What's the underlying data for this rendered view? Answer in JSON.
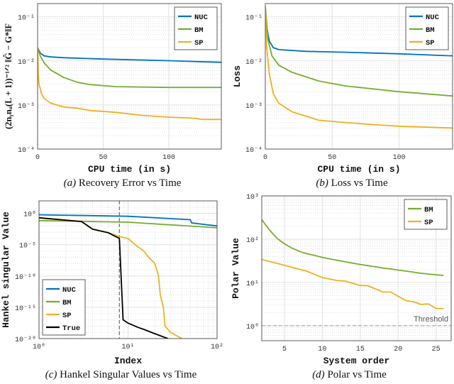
{
  "colors": {
    "NUC": "#0072BD",
    "BM": "#77AC30",
    "SP": "#EDB120",
    "True": "#000000"
  },
  "chart_data": [
    {
      "id": "a",
      "type": "line",
      "caption_label": "(a)",
      "caption_text": " Recovery Error vs Time",
      "xlabel": "CPU time (in s)",
      "ylabel": "(2nᵧnᵤ(L + 1))⁻¹ᐟ² ‖Ĝ − G*‖F",
      "xscale": "linear",
      "yscale": "log",
      "xlim": [
        0,
        140
      ],
      "ylim": [
        0.0001,
        0.2
      ],
      "xticks": [
        0,
        50,
        100
      ],
      "xtick_labels": [
        "0",
        "50",
        "100"
      ],
      "yticks": [
        0.0001,
        0.001,
        0.01,
        0.1
      ],
      "ytick_labels": [
        "10⁻⁴",
        "10⁻³",
        "10⁻²",
        "10⁻¹"
      ],
      "grid": true,
      "legend_position": "top-right",
      "series": [
        {
          "name": "NUC",
          "points": [
            [
              0,
              0.02
            ],
            [
              2,
              0.015
            ],
            [
              5,
              0.013
            ],
            [
              10,
              0.0123
            ],
            [
              20,
              0.0118
            ],
            [
              50,
              0.011
            ],
            [
              100,
              0.0101
            ],
            [
              140,
              0.0093
            ]
          ]
        },
        {
          "name": "BM",
          "points": [
            [
              0,
              0.02
            ],
            [
              2,
              0.013
            ],
            [
              5,
              0.009
            ],
            [
              10,
              0.0062
            ],
            [
              20,
              0.0042
            ],
            [
              30,
              0.0033
            ],
            [
              40,
              0.0029
            ],
            [
              60,
              0.0026
            ],
            [
              100,
              0.0025
            ],
            [
              140,
              0.0025
            ]
          ]
        },
        {
          "name": "SP",
          "points": [
            [
              0,
              0.02
            ],
            [
              0.5,
              0.005
            ],
            [
              1,
              0.003
            ],
            [
              3,
              0.0018
            ],
            [
              5,
              0.0014
            ],
            [
              10,
              0.0011
            ],
            [
              20,
              0.0009
            ],
            [
              30,
              0.00085
            ],
            [
              40,
              0.00075
            ],
            [
              60,
              0.00068
            ],
            [
              80,
              0.00058
            ],
            [
              100,
              0.00053
            ],
            [
              120,
              0.0005
            ],
            [
              125,
              0.00047
            ],
            [
              140,
              0.00047
            ]
          ]
        }
      ]
    },
    {
      "id": "b",
      "type": "line",
      "caption_label": "(b)",
      "caption_text": " Loss vs Time",
      "xlabel": "CPU time (in s)",
      "ylabel": "Loss",
      "xscale": "linear",
      "yscale": "log",
      "xlim": [
        0,
        140
      ],
      "ylim": [
        0.0001,
        0.2
      ],
      "xticks": [
        0,
        50,
        100
      ],
      "xtick_labels": [
        "0",
        "50",
        "100"
      ],
      "yticks": [
        0.0001,
        0.001,
        0.01,
        0.1
      ],
      "ytick_labels": [
        "10⁻⁴",
        "10⁻³",
        "10⁻²",
        "10⁻¹"
      ],
      "grid": true,
      "legend_position": "top-right",
      "series": [
        {
          "name": "NUC",
          "points": [
            [
              0,
              0.17
            ],
            [
              1,
              0.06
            ],
            [
              3,
              0.028
            ],
            [
              6,
              0.02
            ],
            [
              10,
              0.018
            ],
            [
              30,
              0.0165
            ],
            [
              60,
              0.0157
            ],
            [
              100,
              0.0145
            ],
            [
              140,
              0.013
            ]
          ]
        },
        {
          "name": "BM",
          "points": [
            [
              0,
              0.17
            ],
            [
              2,
              0.03
            ],
            [
              5,
              0.013
            ],
            [
              10,
              0.008
            ],
            [
              20,
              0.0055
            ],
            [
              40,
              0.0035
            ],
            [
              60,
              0.0027
            ],
            [
              100,
              0.002
            ],
            [
              140,
              0.0016
            ]
          ]
        },
        {
          "name": "SP",
          "points": [
            [
              0,
              0.17
            ],
            [
              1,
              0.02
            ],
            [
              3,
              0.005
            ],
            [
              6,
              0.0018
            ],
            [
              10,
              0.0011
            ],
            [
              20,
              0.0007
            ],
            [
              40,
              0.00045
            ],
            [
              60,
              0.0004
            ],
            [
              80,
              0.00036
            ],
            [
              100,
              0.00033
            ],
            [
              140,
              0.0003
            ]
          ]
        }
      ]
    },
    {
      "id": "c",
      "type": "line",
      "caption_label": "(c)",
      "caption_text": " Hankel Singular Values vs Time",
      "xlabel": "Index",
      "ylabel": "Hankel singular Value",
      "xscale": "log",
      "yscale": "log",
      "xlim": [
        1,
        100
      ],
      "ylim": [
        1e-20,
        100
      ],
      "xticks": [
        1,
        10,
        100
      ],
      "xtick_labels": [
        "10⁰",
        "10¹",
        "10²"
      ],
      "yticks": [
        1e-20,
        1e-15,
        1e-10,
        1e-05,
        1
      ],
      "ytick_labels": [
        "10⁻²⁰",
        "10⁻¹⁵",
        "10⁻¹⁰",
        "10⁻⁵",
        "10⁰"
      ],
      "grid": true,
      "legend_position": "bottom-left",
      "vline": 8,
      "series": [
        {
          "name": "NUC",
          "points": [
            [
              1,
              0.6
            ],
            [
              10,
              0.35
            ],
            [
              50,
              0.1
            ],
            [
              52,
              0.03
            ],
            [
              100,
              0.01
            ]
          ]
        },
        {
          "name": "BM",
          "points": [
            [
              1,
              0.07
            ],
            [
              10,
              0.04
            ],
            [
              100,
              0.005
            ]
          ]
        },
        {
          "name": "SP",
          "points": [
            [
              1,
              0.2
            ],
            [
              3,
              0.05
            ],
            [
              4,
              0.003
            ],
            [
              6,
              0.0008
            ],
            [
              8,
              0.0002
            ],
            [
              10,
              0.0001
            ],
            [
              12,
              1e-05
            ],
            [
              15,
              1e-06
            ],
            [
              17,
              1e-07
            ],
            [
              20,
              1e-08
            ],
            [
              22,
              1e-10
            ],
            [
              23,
              1e-13
            ],
            [
              25,
              1e-15
            ],
            [
              26,
              1e-18
            ],
            [
              30,
              1e-19
            ],
            [
              40,
              1e-20
            ],
            [
              44,
              1e-21
            ]
          ]
        },
        {
          "name": "True",
          "points": [
            [
              1,
              0.2
            ],
            [
              3,
              0.05
            ],
            [
              4,
              0.003
            ],
            [
              6,
              0.0008
            ],
            [
              8,
              0.0001
            ],
            [
              8.8,
              1e-17
            ],
            [
              10,
              3e-18
            ],
            [
              13,
              6e-19
            ],
            [
              15,
              3e-19
            ],
            [
              20,
              6e-20
            ],
            [
              28,
              1e-20
            ],
            [
              30,
              3e-21
            ]
          ]
        }
      ]
    },
    {
      "id": "d",
      "type": "line",
      "caption_label": "(d)",
      "caption_text": " Polar vs Time",
      "xlabel": "System order",
      "ylabel": "Polar Value",
      "xscale": "linear",
      "yscale": "log",
      "xlim": [
        2,
        27
      ],
      "ylim": [
        0.45,
        1000
      ],
      "xticks": [
        5,
        10,
        15,
        20,
        25
      ],
      "xtick_labels": [
        "5",
        "10",
        "15",
        "20",
        "25"
      ],
      "yticks": [
        1,
        10,
        100,
        1000
      ],
      "ytick_labels": [
        "10⁰",
        "10¹",
        "10²",
        "10³"
      ],
      "grid": true,
      "legend_position": "top-right",
      "hline": {
        "value": 1,
        "label": "Threshold"
      },
      "series": [
        {
          "name": "BM",
          "points": [
            [
              2,
              280
            ],
            [
              3,
              165
            ],
            [
              4,
              105
            ],
            [
              5,
              78
            ],
            [
              6,
              62
            ],
            [
              7,
              52
            ],
            [
              8,
              46
            ],
            [
              9,
              42
            ],
            [
              10,
              38
            ],
            [
              11,
              35
            ],
            [
              12,
              32.5
            ],
            [
              13,
              30
            ],
            [
              14,
              28
            ],
            [
              15,
              26
            ],
            [
              16,
              24.5
            ],
            [
              17,
              23
            ],
            [
              18,
              21.5
            ],
            [
              19,
              20.5
            ],
            [
              20,
              19.3
            ],
            [
              21,
              18.3
            ],
            [
              22,
              17.3
            ],
            [
              23,
              16.3
            ],
            [
              24,
              15.6
            ],
            [
              25,
              15
            ],
            [
              26,
              14.5
            ]
          ]
        },
        {
          "name": "SP",
          "points": [
            [
              2,
              34
            ],
            [
              5,
              25
            ],
            [
              8,
              18
            ],
            [
              10,
              13
            ],
            [
              12,
              11
            ],
            [
              13,
              10.8
            ],
            [
              15,
              8.5
            ],
            [
              16,
              8.4
            ],
            [
              18,
              6
            ],
            [
              19,
              6
            ],
            [
              21,
              3.8
            ],
            [
              22,
              3.6
            ],
            [
              23,
              3.1
            ],
            [
              24,
              3.2
            ],
            [
              25,
              2.5
            ],
            [
              26,
              2.5
            ]
          ]
        }
      ]
    }
  ]
}
